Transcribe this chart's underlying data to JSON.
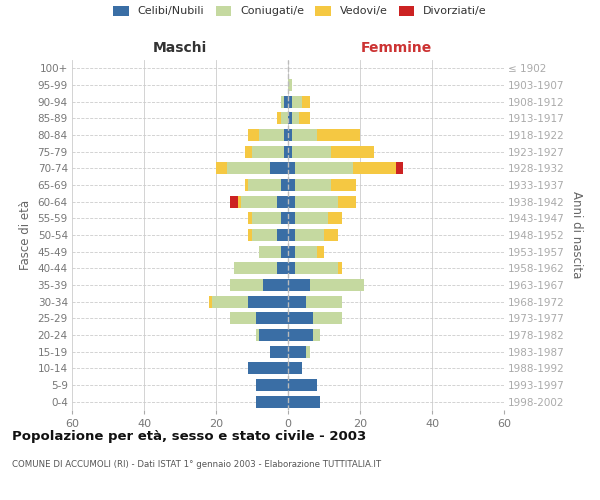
{
  "age_groups": [
    "0-4",
    "5-9",
    "10-14",
    "15-19",
    "20-24",
    "25-29",
    "30-34",
    "35-39",
    "40-44",
    "45-49",
    "50-54",
    "55-59",
    "60-64",
    "65-69",
    "70-74",
    "75-79",
    "80-84",
    "85-89",
    "90-94",
    "95-99",
    "100+"
  ],
  "birth_years": [
    "1998-2002",
    "1993-1997",
    "1988-1992",
    "1983-1987",
    "1978-1982",
    "1973-1977",
    "1968-1972",
    "1963-1967",
    "1958-1962",
    "1953-1957",
    "1948-1952",
    "1943-1947",
    "1938-1942",
    "1933-1937",
    "1928-1932",
    "1923-1927",
    "1918-1922",
    "1913-1917",
    "1908-1912",
    "1903-1907",
    "≤ 1902"
  ],
  "colors": {
    "celibe": "#3a6ea5",
    "coniugato": "#c5d9a0",
    "vedovo": "#f5c842",
    "divorziato": "#cc2222"
  },
  "maschi": {
    "celibe": [
      9,
      9,
      11,
      5,
      8,
      9,
      11,
      7,
      3,
      2,
      3,
      2,
      3,
      2,
      5,
      1,
      1,
      0,
      1,
      0,
      0
    ],
    "coniugato": [
      0,
      0,
      0,
      0,
      1,
      7,
      10,
      9,
      12,
      6,
      7,
      8,
      10,
      9,
      12,
      9,
      7,
      2,
      1,
      0,
      0
    ],
    "vedovo": [
      0,
      0,
      0,
      0,
      0,
      0,
      1,
      0,
      0,
      0,
      1,
      1,
      1,
      1,
      3,
      2,
      3,
      1,
      0,
      0,
      0
    ],
    "divorziato": [
      0,
      0,
      0,
      0,
      0,
      0,
      0,
      0,
      0,
      0,
      0,
      0,
      2,
      0,
      0,
      0,
      0,
      0,
      0,
      0,
      0
    ]
  },
  "femmine": {
    "celibe": [
      9,
      8,
      4,
      5,
      7,
      7,
      5,
      6,
      2,
      2,
      2,
      2,
      2,
      2,
      2,
      1,
      1,
      1,
      1,
      0,
      0
    ],
    "coniugato": [
      0,
      0,
      0,
      1,
      2,
      8,
      10,
      15,
      12,
      6,
      8,
      9,
      12,
      10,
      16,
      11,
      7,
      2,
      3,
      1,
      0
    ],
    "vedovo": [
      0,
      0,
      0,
      0,
      0,
      0,
      0,
      0,
      1,
      2,
      4,
      4,
      5,
      7,
      12,
      12,
      12,
      3,
      2,
      0,
      0
    ],
    "divorziato": [
      0,
      0,
      0,
      0,
      0,
      0,
      0,
      0,
      0,
      0,
      0,
      0,
      0,
      0,
      2,
      0,
      0,
      0,
      0,
      0,
      0
    ]
  },
  "xlim": 60,
  "title": "Popolazione per età, sesso e stato civile - 2003",
  "subtitle": "COMUNE DI ACCUMOLI (RI) - Dati ISTAT 1° gennaio 2003 - Elaborazione TUTTITALIA.IT",
  "xlabel_left": "Maschi",
  "xlabel_right": "Femmine",
  "ylabel_left": "Fasce di età",
  "ylabel_right": "Anni di nascita",
  "legend_labels": [
    "Celibi/Nubili",
    "Coniugati/e",
    "Vedovi/e",
    "Divorziati/e"
  ],
  "bg_color": "#ffffff",
  "grid_color": "#cccccc",
  "tick_color": "#777777",
  "label_color_maschi": "#333333",
  "label_color_femmine": "#cc3333"
}
